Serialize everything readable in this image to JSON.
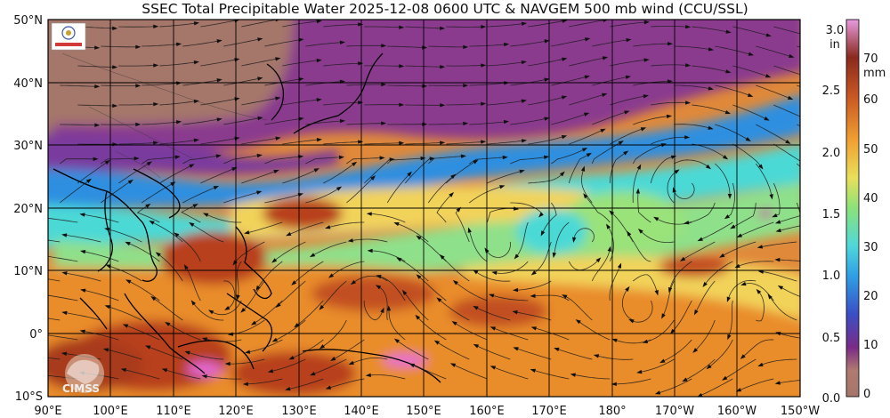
{
  "title": "SSEC Total Precipitable Water  2025-12-08 0600 UTC & NAVGEM 500 mb wind (CCU/SSL)",
  "lat_labels": [
    "50°N",
    "40°N",
    "30°N",
    "20°N",
    "10°N",
    "0°",
    "10°S"
  ],
  "lon_labels": [
    "90°E",
    "100°E",
    "110°E",
    "120°E",
    "130°E",
    "140°E",
    "150°E",
    "160°E",
    "170°E",
    "180°",
    "170°W",
    "160°W",
    "150°W"
  ],
  "colorbar": {
    "inch_unit": "in",
    "mm_unit": "mm",
    "inch_ticks": [
      "3.0",
      "2.5",
      "2.0",
      "1.5",
      "1.0",
      "0.5",
      "0.0"
    ],
    "mm_ticks": [
      "70",
      "60",
      "50",
      "40",
      "30",
      "20",
      "10",
      "0"
    ]
  },
  "logo_text": "CIMSS",
  "colors": {
    "dry": "#a5766b",
    "purple": "#8a3a8e",
    "blue": "#2e8fe0",
    "cyan": "#4cd9d6",
    "green": "#8fe08a",
    "yellow": "#f2d35a",
    "orange": "#e98c2c",
    "red": "#b8401f",
    "pink": "#e76bd6"
  }
}
